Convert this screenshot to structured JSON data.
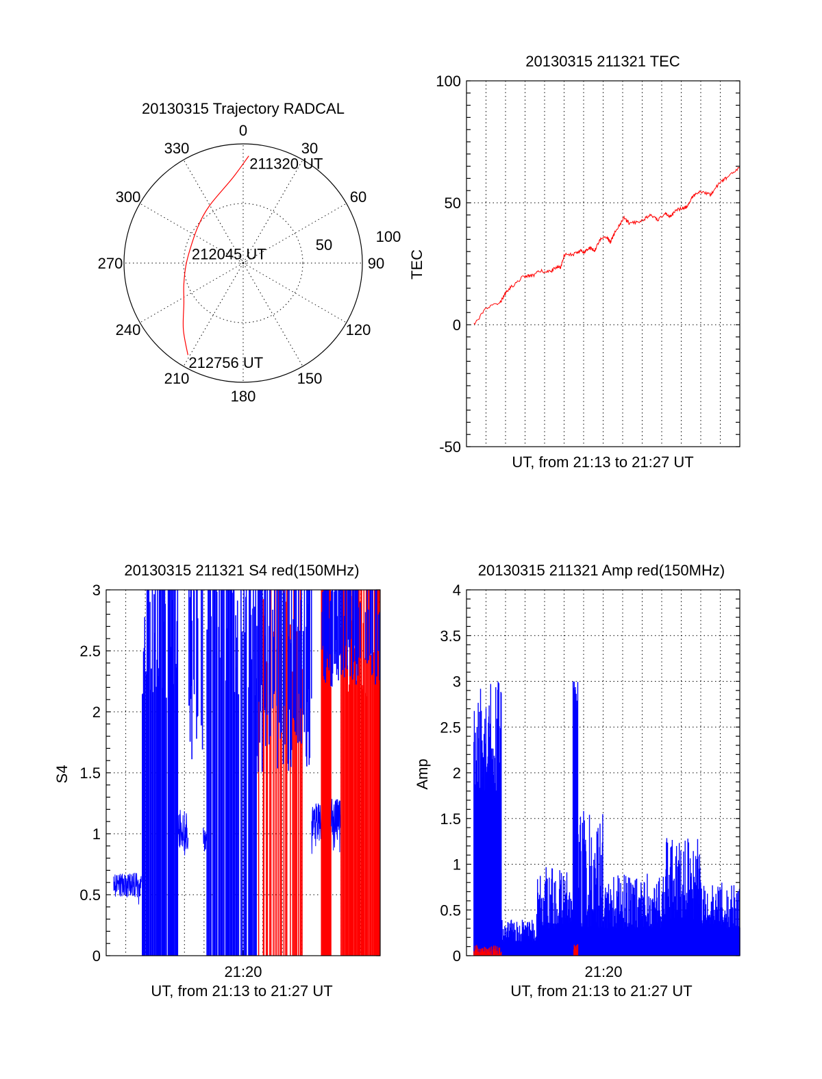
{
  "chart_data": [
    {
      "type": "polar",
      "title": "20130315 Trajectory RADCAL",
      "angle_labels": [
        "0",
        "30",
        "60",
        "90",
        "120",
        "150",
        "180",
        "210",
        "240",
        "270",
        "300",
        "330"
      ],
      "radial_labels": [
        "50",
        "100"
      ],
      "rlim": [
        0,
        100
      ],
      "series_color": "#ff0000",
      "trajectory": [
        {
          "az": 3,
          "r": 90
        },
        {
          "az": 353,
          "r": 72
        },
        {
          "az": 330,
          "r": 56
        },
        {
          "az": 310,
          "r": 49
        },
        {
          "az": 288,
          "r": 46
        },
        {
          "az": 268,
          "r": 48
        },
        {
          "az": 250,
          "r": 53
        },
        {
          "az": 236,
          "r": 60
        },
        {
          "az": 222,
          "r": 75
        },
        {
          "az": 211,
          "r": 90
        }
      ],
      "annotations": [
        {
          "text": "211320 UT",
          "az": 3,
          "r": 90
        },
        {
          "text": "212045 UT",
          "az": 288,
          "r": 46
        },
        {
          "text": "212756 UT",
          "az": 211,
          "r": 90
        }
      ]
    },
    {
      "type": "line",
      "title": "20130315 211321 TEC",
      "xlabel": "UT, from 21:13 to 21:27 UT",
      "ylabel": "TEC",
      "xlim": [
        0,
        14
      ],
      "ylim": [
        -50,
        100
      ],
      "yticks": [
        "-50",
        "0",
        "50",
        "100"
      ],
      "grid": true,
      "color": "#ff0000",
      "x_unit": "minutes after 21:13",
      "x": [
        0.38,
        1.02,
        1.74,
        1.97,
        2.26,
        2.96,
        3.37,
        3.77,
        4.3,
        4.65,
        4.82,
        5.0,
        5.46,
        5.8,
        6.04,
        6.27,
        6.56,
        6.85,
        7.2,
        7.37,
        7.6,
        8.07,
        8.36,
        8.94,
        9.4,
        9.81,
        10.2,
        10.45,
        10.7,
        11.03,
        11.32,
        11.6,
        11.96,
        12.49,
        12.95,
        13.36,
        14.0
      ],
      "y": [
        0,
        6.7,
        9.4,
        12.6,
        15.3,
        20,
        20,
        22,
        21.7,
        24,
        23,
        28.7,
        28.7,
        30.3,
        29.8,
        31.6,
        30.5,
        35,
        36,
        33.7,
        37.8,
        43.7,
        41.5,
        42.6,
        44.8,
        43,
        45.8,
        44.2,
        46.9,
        47.6,
        48.5,
        52.8,
        54.4,
        53.3,
        58.1,
        60.3,
        64.6
      ]
    },
    {
      "type": "line",
      "title": "20130315 211321 S4 red(150MHz)",
      "xlabel": "UT, from 21:13 to 21:27 UT",
      "ylabel": "S4",
      "xtick_label": "21:20",
      "xlim": [
        0,
        14
      ],
      "ylim": [
        0,
        3
      ],
      "yticks": [
        "0",
        "0.5",
        "1",
        "1.5",
        "2",
        "2.5",
        "3"
      ],
      "grid": true,
      "segments": [
        {
          "t0": 0.38,
          "t1": 1.8,
          "color": "#0000ff",
          "kind": "trace",
          "lo": 0.48,
          "hi": 0.68
        },
        {
          "t0": 1.85,
          "t1": 3.65,
          "color": "#0000ff",
          "kind": "bars",
          "lo": 0,
          "hi": 3,
          "density": 0.8
        },
        {
          "t0": 3.65,
          "t1": 4.2,
          "color": "#0000ff",
          "kind": "trace",
          "lo": 0.85,
          "hi": 1.2
        },
        {
          "t0": 4.2,
          "t1": 4.95,
          "color": "#0000ff",
          "kind": "bars",
          "lo": 1.6,
          "hi": 3,
          "density": 0.5
        },
        {
          "t0": 4.95,
          "t1": 5.15,
          "color": "#0000ff",
          "kind": "trace",
          "lo": 0.85,
          "hi": 1.05
        },
        {
          "t0": 5.15,
          "t1": 7.7,
          "color": "#0000ff",
          "kind": "bars",
          "lo": 0,
          "hi": 3,
          "density": 0.6
        },
        {
          "t0": 7.7,
          "t1": 10.5,
          "color": "#ff0000",
          "kind": "bars",
          "lo": 0,
          "hi": 3,
          "density": 0.25
        },
        {
          "t0": 7.7,
          "t1": 10.5,
          "color": "#0000ff",
          "kind": "bars",
          "lo": 1.5,
          "hi": 3,
          "density": 0.45
        },
        {
          "t0": 10.5,
          "t1": 11.0,
          "color": "#0000ff",
          "kind": "trace",
          "lo": 0.95,
          "hi": 1.25
        },
        {
          "t0": 11.0,
          "t1": 11.5,
          "color": "#ff0000",
          "kind": "bars",
          "lo": 0,
          "hi": 3,
          "density": 0.9
        },
        {
          "t0": 11.5,
          "t1": 12.0,
          "color": "#0000ff",
          "kind": "trace",
          "lo": 0.95,
          "hi": 1.3
        },
        {
          "t0": 12.0,
          "t1": 14.0,
          "color": "#ff0000",
          "kind": "bars",
          "lo": 0,
          "hi": 3,
          "density": 0.85
        },
        {
          "t0": 11.0,
          "t1": 14.0,
          "color": "#0000ff",
          "kind": "bars",
          "lo": 2.2,
          "hi": 3,
          "density": 0.6
        }
      ]
    },
    {
      "type": "bar",
      "title": "20130315 211321 Amp red(150MHz)",
      "xlabel": "UT, from 21:13 to 21:27 UT",
      "ylabel": "Amp",
      "xtick_label": "21:20",
      "xlim": [
        0,
        14
      ],
      "ylim": [
        0,
        4
      ],
      "yticks": [
        "0",
        "0.5",
        "1",
        "1.5",
        "2",
        "2.5",
        "3",
        "3.5",
        "4"
      ],
      "grid": true,
      "segments": [
        {
          "t0": 0.38,
          "t1": 1.8,
          "color": "#0000ff",
          "lo": 1.8,
          "hi": 3.0
        },
        {
          "t0": 1.8,
          "t1": 3.6,
          "color": "#0000ff",
          "lo": 0.15,
          "hi": 0.4
        },
        {
          "t0": 3.6,
          "t1": 5.46,
          "color": "#0000ff",
          "lo": 0.3,
          "hi": 1.0
        },
        {
          "t0": 5.46,
          "t1": 5.7,
          "color": "#0000ff",
          "lo": 2.7,
          "hi": 3.0
        },
        {
          "t0": 5.7,
          "t1": 7.0,
          "color": "#0000ff",
          "lo": 0.3,
          "hi": 1.6
        },
        {
          "t0": 7.0,
          "t1": 10.2,
          "color": "#0000ff",
          "lo": 0.3,
          "hi": 0.9
        },
        {
          "t0": 10.2,
          "t1": 12.0,
          "color": "#0000ff",
          "lo": 0.4,
          "hi": 1.3
        },
        {
          "t0": 12.0,
          "t1": 14.0,
          "color": "#0000ff",
          "lo": 0.3,
          "hi": 0.8
        },
        {
          "t0": 0.38,
          "t1": 1.8,
          "color": "#ff0000",
          "lo": 0.0,
          "hi": 0.12
        },
        {
          "t0": 5.5,
          "t1": 5.7,
          "color": "#ff0000",
          "lo": 0.05,
          "hi": 0.15
        }
      ]
    }
  ]
}
